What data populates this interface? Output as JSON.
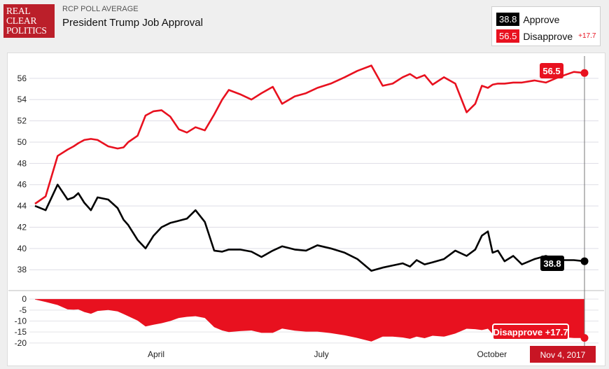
{
  "header": {
    "logo_line1": "REAL",
    "logo_line2": "CLEAR",
    "logo_line3": "POLITICS",
    "supertitle": "RCP POLL AVERAGE",
    "title": "President Trump Job Approval"
  },
  "legend": {
    "approve_value": "38.8",
    "approve_label": "Approve",
    "disapprove_value": "56.5",
    "disapprove_label": "Disapprove",
    "spread": "+17.7"
  },
  "colors": {
    "approve": "#000000",
    "disapprove": "#e8111f"
  },
  "chart_data": {
    "type": "line",
    "title": "President Trump Job Approval",
    "x_tick_labels": [
      "April",
      "July",
      "October"
    ],
    "x_ticks": [
      0.2204,
      0.5212,
      0.8316
    ],
    "ylim": [
      36.5,
      57.7
    ],
    "yticks": [
      38,
      40,
      42,
      44,
      46,
      48,
      50,
      52,
      54,
      56
    ],
    "grid": true,
    "x": [
      0,
      0.0194,
      0.0412,
      0.0594,
      0.0703,
      0.0788,
      0.0897,
      0.1018,
      0.1139,
      0.1333,
      0.1503,
      0.1612,
      0.1697,
      0.1867,
      0.2012,
      0.2158,
      0.2303,
      0.2461,
      0.2618,
      0.2764,
      0.2921,
      0.3091,
      0.3261,
      0.3406,
      0.3527,
      0.3733,
      0.3939,
      0.4121,
      0.4327,
      0.4497,
      0.4727,
      0.4933,
      0.5139,
      0.5382,
      0.5636,
      0.5867,
      0.6121,
      0.6327,
      0.6509,
      0.6691,
      0.6824,
      0.6945,
      0.7091,
      0.7236,
      0.7442,
      0.7648,
      0.7855,
      0.8012,
      0.8133,
      0.8242,
      0.8327,
      0.8424,
      0.8545,
      0.8703,
      0.8861,
      0.9091,
      0.9297,
      0.9479,
      0.9636,
      0.9806,
      1
    ],
    "series": [
      {
        "name": "Approve",
        "values": [
          44.0,
          43.6,
          46.0,
          44.6,
          44.8,
          45.2,
          44.3,
          43.6,
          44.8,
          44.6,
          43.8,
          42.7,
          42.2,
          40.8,
          40.0,
          41.2,
          42.0,
          42.4,
          42.6,
          42.8,
          43.6,
          42.5,
          39.8,
          39.7,
          39.9,
          39.9,
          39.7,
          39.2,
          39.8,
          40.2,
          39.9,
          39.8,
          40.3,
          40.0,
          39.6,
          39.0,
          37.9,
          38.2,
          38.4,
          38.6,
          38.3,
          38.9,
          38.5,
          38.7,
          39.0,
          39.8,
          39.3,
          39.9,
          41.2,
          41.6,
          39.6,
          39.8,
          38.8,
          39.3,
          38.5,
          39.0,
          39.3,
          39.0,
          38.9,
          38.9,
          38.8
        ]
      },
      {
        "name": "Disapprove",
        "values": [
          44.2,
          44.9,
          48.7,
          49.3,
          49.6,
          49.9,
          50.2,
          50.3,
          50.2,
          49.6,
          49.4,
          49.5,
          50.0,
          50.6,
          52.5,
          52.9,
          53.0,
          52.4,
          51.2,
          50.9,
          51.4,
          51.1,
          52.6,
          54.0,
          54.9,
          54.5,
          54.0,
          54.6,
          55.2,
          53.6,
          54.3,
          54.6,
          55.1,
          55.5,
          56.1,
          56.7,
          57.2,
          55.3,
          55.5,
          56.1,
          56.4,
          56.0,
          56.3,
          55.4,
          56.1,
          55.5,
          52.8,
          53.6,
          55.3,
          55.1,
          55.4,
          55.5,
          55.5,
          55.6,
          55.6,
          55.8,
          55.6,
          56.0,
          56.3,
          56.6,
          56.5
        ]
      }
    ],
    "spread": {
      "ylim": [
        -21,
        1
      ],
      "yticks": [
        0,
        -5,
        -10,
        -15,
        -20
      ],
      "label": "Disapprove",
      "final_value": "+17.7"
    },
    "last_approve_label": "38.8",
    "last_disapprove_label": "56.5",
    "date_label": "Nov 4, 2017"
  }
}
